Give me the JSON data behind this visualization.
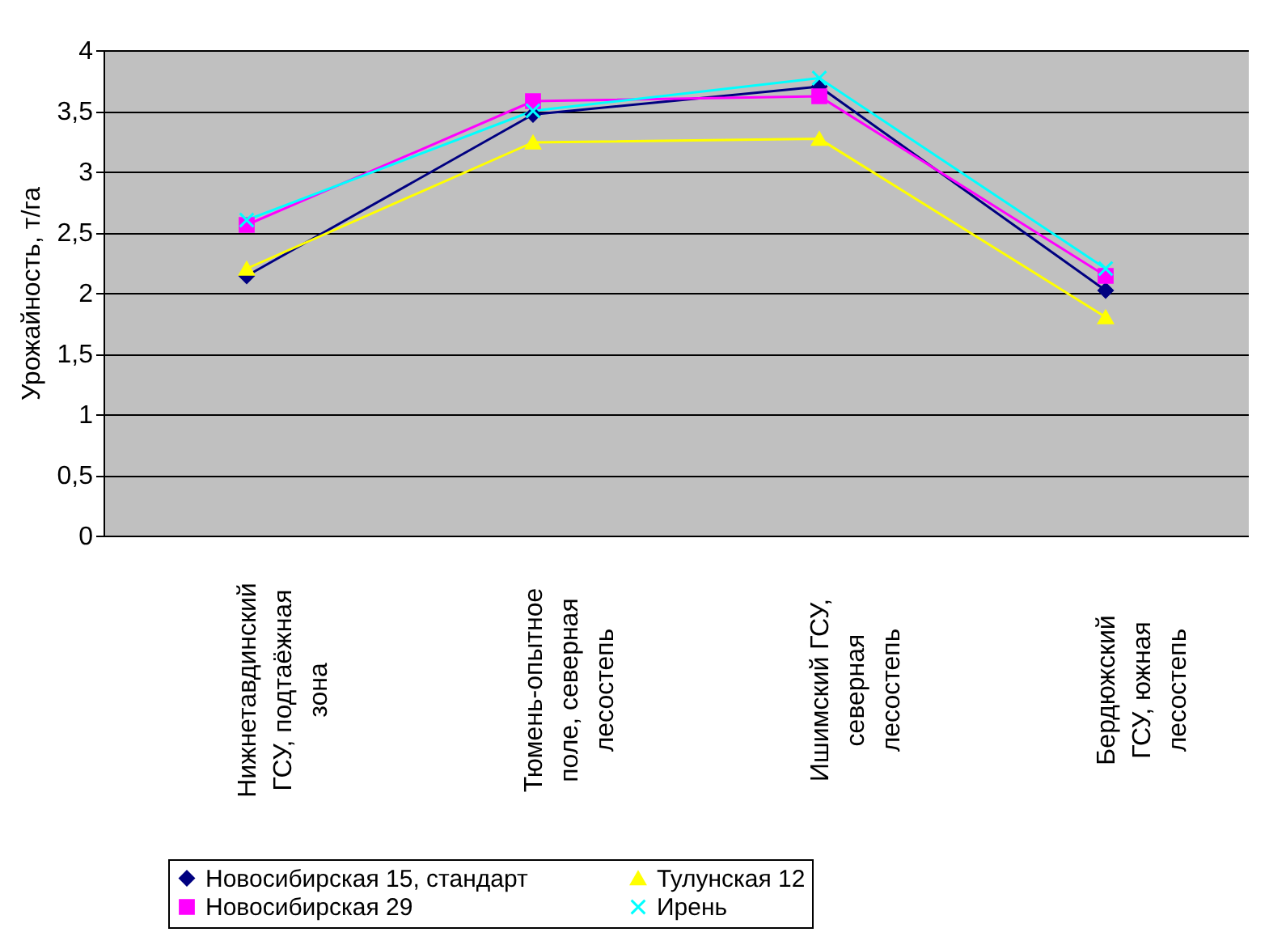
{
  "chart_data": {
    "type": "line",
    "ylabel": "Урожайность, т/га",
    "categories": [
      "Нижнетавдинский\nГСУ, подтаёжная\nзона",
      "Тюмень-опытное\nполе, северная\nлесостепь",
      "Ишимский ГСУ,\nсеверная\nлесостепь",
      "Бердюжский\nГСУ, южная\nлесостепь"
    ],
    "series": [
      {
        "name": "Новосибирская 15, стандарт",
        "color": "#000080",
        "marker": "diamond",
        "values": [
          2.14,
          3.47,
          3.7,
          2.02
        ]
      },
      {
        "name": "Новосибирская 29",
        "color": "#ff00ff",
        "marker": "square",
        "values": [
          2.56,
          3.58,
          3.62,
          2.14
        ]
      },
      {
        "name": "Тулунская 12",
        "color": "#ffff00",
        "marker": "triangle",
        "values": [
          2.2,
          3.24,
          3.27,
          1.8
        ]
      },
      {
        "name": "Ирень",
        "color": "#00ffff",
        "marker": "cross",
        "values": [
          2.6,
          3.5,
          3.77,
          2.2
        ]
      }
    ],
    "ylim": [
      0,
      4
    ],
    "yticks": [
      0,
      {
        "value": 0.5,
        "label": "0,5"
      },
      1,
      {
        "value": 1.5,
        "label": "1,5"
      },
      2,
      {
        "value": 2.5,
        "label": "2,5"
      },
      3,
      {
        "value": 3.5,
        "label": "3,5"
      },
      4
    ],
    "grid": "y",
    "legend": "bottom"
  }
}
